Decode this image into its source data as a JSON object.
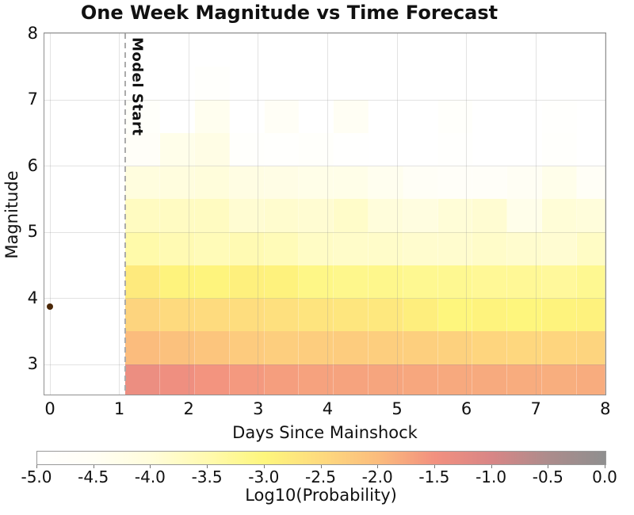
{
  "chart_data": {
    "type": "heatmap",
    "title": "One Week Magnitude vs Time Forecast",
    "xlabel": "Days Since Mainshock",
    "ylabel": "Magnitude",
    "xlim": [
      -0.08,
      8
    ],
    "ylim": [
      2.55,
      8
    ],
    "grid": true,
    "x_ticks": [
      0,
      1,
      2,
      3,
      4,
      5,
      6,
      7,
      8
    ],
    "x_tick_labels": [
      "0",
      "1",
      "2",
      "3",
      "4",
      "5",
      "6",
      "7",
      "8"
    ],
    "y_ticks": [
      8,
      7,
      6,
      5,
      4,
      3
    ],
    "y_tick_labels": [
      "8",
      "7",
      "6",
      "5",
      "4",
      "3"
    ],
    "day_bin_edges": [
      1.09,
      1.59,
      2.09,
      2.59,
      3.09,
      3.59,
      4.09,
      4.59,
      5.09,
      5.59,
      6.09,
      6.59,
      7.09,
      7.59,
      8.09
    ],
    "magnitude_bin_edges_top_to_bottom": [
      8.0,
      7.5,
      7.0,
      6.5,
      6.0,
      5.5,
      5.0,
      4.5,
      4.0,
      3.5,
      3.0,
      2.5
    ],
    "log10_probability_rows_top_to_bottom": [
      [
        -5.0,
        -5.0,
        -5.0,
        -5.0,
        -5.0,
        -5.0,
        -5.0,
        -5.0,
        -5.0,
        -5.0,
        -5.0,
        -5.0,
        -5.0,
        -5.0
      ],
      [
        -5.0,
        -5.0,
        -4.85,
        -5.0,
        -5.0,
        -5.0,
        -5.0,
        -5.0,
        -5.0,
        -5.0,
        -5.0,
        -5.0,
        -5.0,
        -5.0
      ],
      [
        -4.75,
        -5.0,
        -4.4,
        -5.0,
        -4.6,
        -5.0,
        -4.5,
        -5.0,
        -5.0,
        -4.8,
        -5.0,
        -5.0,
        -4.9,
        -5.0
      ],
      [
        -4.7,
        -4.3,
        -4.2,
        -4.85,
        -4.9,
        -4.8,
        -4.95,
        -5.0,
        -5.0,
        -4.9,
        -5.0,
        -5.0,
        -4.85,
        -5.0
      ],
      [
        -4.05,
        -4.05,
        -4.0,
        -4.15,
        -4.2,
        -4.25,
        -4.25,
        -4.4,
        -4.6,
        -4.7,
        -4.7,
        -4.5,
        -4.3,
        -4.6
      ],
      [
        -3.7,
        -3.72,
        -3.7,
        -3.9,
        -3.85,
        -3.9,
        -3.8,
        -4.0,
        -4.1,
        -3.95,
        -3.9,
        -4.3,
        -3.95,
        -4.0
      ],
      [
        -3.45,
        -3.55,
        -3.6,
        -3.55,
        -3.6,
        -3.75,
        -3.8,
        -3.8,
        -3.85,
        -3.85,
        -3.8,
        -3.85,
        -3.9,
        -3.75
      ],
      [
        -2.78,
        -2.95,
        -2.96,
        -2.9,
        -2.92,
        -3.1,
        -3.15,
        -3.15,
        -3.2,
        -3.2,
        -3.25,
        -3.25,
        -3.3,
        -3.2
      ],
      [
        -2.4,
        -2.5,
        -2.52,
        -2.56,
        -2.6,
        -2.68,
        -2.72,
        -2.75,
        -2.85,
        -3.0,
        -2.95,
        -3.0,
        -2.95,
        -2.92
      ],
      [
        -2.0,
        -2.08,
        -2.15,
        -2.25,
        -2.3,
        -2.28,
        -2.26,
        -2.3,
        -2.32,
        -2.35,
        -2.42,
        -2.45,
        -2.42,
        -2.4
      ],
      [
        -1.38,
        -1.44,
        -1.55,
        -1.6,
        -1.66,
        -1.7,
        -1.72,
        -1.74,
        -1.76,
        -1.78,
        -1.8,
        -1.82,
        -1.84,
        -1.82
      ]
    ],
    "model_start": {
      "day": 1.09,
      "label": "Model Start",
      "line_color": "#ababab"
    },
    "mainshock": {
      "day": 0,
      "magnitude": 3.87,
      "color": "#4b2708"
    },
    "colorbar": {
      "label": "Log10(Probability)",
      "tick_values": [
        -5.0,
        -4.5,
        -4.0,
        -3.5,
        -3.0,
        -2.5,
        -2.0,
        -1.5,
        -1.0,
        -0.5,
        0.0
      ],
      "tick_labels": [
        "-5.0",
        "-4.5",
        "-4.0",
        "-3.5",
        "-3.0",
        "-2.5",
        "-2.0",
        "-1.5",
        "-1.0",
        "-0.5",
        "0.0"
      ],
      "colormap_stops": [
        {
          "value": -5.0,
          "color": "#ffffff"
        },
        {
          "value": -4.5,
          "color": "#fffef4"
        },
        {
          "value": -4.0,
          "color": "#fffddb"
        },
        {
          "value": -3.5,
          "color": "#fffaaf"
        },
        {
          "value": -3.0,
          "color": "#fef67d"
        },
        {
          "value": -2.5,
          "color": "#feda7e"
        },
        {
          "value": -2.0,
          "color": "#fbbc7d"
        },
        {
          "value": -1.5,
          "color": "#f2907f"
        },
        {
          "value": -1.0,
          "color": "#d88686"
        },
        {
          "value": -0.5,
          "color": "#ac8c8c"
        },
        {
          "value": 0.0,
          "color": "#8f8f8f"
        }
      ]
    },
    "frame_color": "#8f8f8f",
    "gridline_color": "#e6e6e6"
  }
}
